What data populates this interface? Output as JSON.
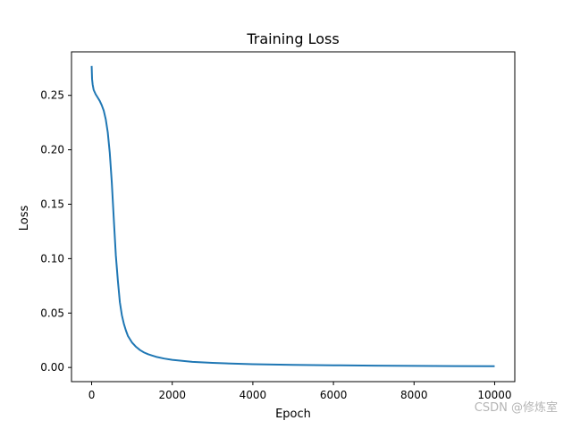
{
  "chart_data": {
    "type": "line",
    "title": "Training Loss",
    "xlabel": "Epoch",
    "ylabel": "Loss",
    "xlim": [
      -500,
      10500
    ],
    "ylim": [
      -0.013,
      0.29
    ],
    "xticks": [
      0,
      2000,
      4000,
      6000,
      8000,
      10000
    ],
    "yticks": [
      0.0,
      0.05,
      0.1,
      0.15,
      0.2,
      0.25
    ],
    "xtick_labels": [
      "0",
      "2000",
      "4000",
      "6000",
      "8000",
      "10000"
    ],
    "ytick_labels": [
      "0.00",
      "0.05",
      "0.10",
      "0.15",
      "0.20",
      "0.25"
    ],
    "grid": false,
    "line_color": "#1f77b4",
    "series": [
      {
        "x": [
          0,
          10,
          25,
          50,
          100,
          150,
          200,
          250,
          300,
          350,
          400,
          450,
          500,
          550,
          600,
          650,
          700,
          750,
          800,
          850,
          900,
          950,
          1000,
          1050,
          1100,
          1200,
          1300,
          1400,
          1500,
          1600,
          1800,
          2000,
          2500,
          3000,
          4000,
          5000,
          6000,
          7000,
          8000,
          9000,
          10000
        ],
        "y": [
          0.277,
          0.265,
          0.26,
          0.255,
          0.251,
          0.248,
          0.245,
          0.241,
          0.236,
          0.228,
          0.216,
          0.197,
          0.17,
          0.136,
          0.103,
          0.08,
          0.06,
          0.048,
          0.04,
          0.034,
          0.029,
          0.026,
          0.023,
          0.021,
          0.019,
          0.016,
          0.0138,
          0.0122,
          0.011,
          0.0098,
          0.0082,
          0.007,
          0.0052,
          0.0042,
          0.003,
          0.0024,
          0.002,
          0.0017,
          0.0015,
          0.0013,
          0.0012
        ]
      }
    ]
  },
  "watermark": "CSDN @修炼室"
}
